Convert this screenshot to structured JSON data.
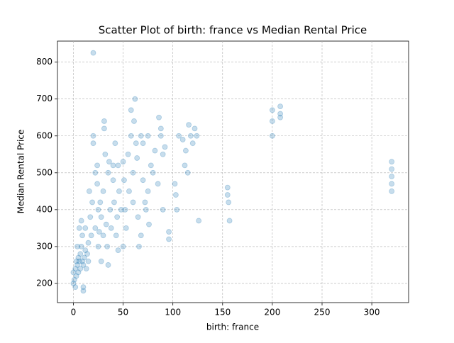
{
  "chart_data": {
    "type": "scatter",
    "title": "Scatter Plot of birth: france vs Median Rental Price",
    "x_label": "birth: france",
    "y_label": "Median Rental Price",
    "color": "#1f77b4",
    "grid": true,
    "xlim": [
      -16,
      337
    ],
    "ylim": [
      148,
      857
    ],
    "xticks": [
      0,
      50,
      100,
      150,
      200,
      250,
      300
    ],
    "yticks": [
      200,
      300,
      400,
      500,
      600,
      700,
      800
    ],
    "x": [
      0,
      0,
      1,
      2,
      2,
      3,
      3,
      4,
      4,
      5,
      5,
      6,
      6,
      7,
      7,
      8,
      8,
      9,
      9,
      10,
      10,
      10,
      11,
      12,
      12,
      13,
      14,
      15,
      15,
      16,
      17,
      18,
      19,
      20,
      20,
      20,
      22,
      22,
      24,
      24,
      25,
      25,
      26,
      27,
      28,
      28,
      30,
      30,
      31,
      31,
      32,
      33,
      34,
      35,
      35,
      36,
      37,
      38,
      40,
      40,
      41,
      42,
      43,
      44,
      45,
      45,
      46,
      48,
      50,
      50,
      51,
      52,
      53,
      55,
      56,
      58,
      58,
      60,
      60,
      61,
      62,
      63,
      64,
      65,
      66,
      68,
      68,
      70,
      70,
      72,
      73,
      75,
      75,
      76,
      78,
      80,
      82,
      85,
      86,
      88,
      88,
      90,
      90,
      92,
      96,
      96,
      102,
      103,
      104,
      106,
      110,
      112,
      113,
      115,
      116,
      118,
      120,
      122,
      124,
      126,
      155,
      155,
      156,
      157,
      200,
      200,
      200,
      208,
      208,
      208,
      320,
      320,
      320,
      320,
      320
    ],
    "values": [
      200,
      230,
      210,
      240,
      190,
      260,
      220,
      250,
      300,
      270,
      230,
      260,
      350,
      240,
      280,
      300,
      370,
      260,
      330,
      250,
      190,
      180,
      270,
      290,
      350,
      240,
      280,
      310,
      260,
      450,
      380,
      330,
      420,
      600,
      825,
      580,
      350,
      500,
      520,
      470,
      300,
      400,
      340,
      420,
      380,
      260,
      450,
      330,
      620,
      640,
      550,
      360,
      300,
      250,
      500,
      530,
      400,
      350,
      520,
      480,
      420,
      580,
      330,
      380,
      520,
      290,
      450,
      400,
      300,
      530,
      480,
      400,
      350,
      550,
      450,
      600,
      670,
      500,
      420,
      640,
      700,
      580,
      540,
      380,
      300,
      600,
      330,
      480,
      580,
      420,
      400,
      450,
      600,
      360,
      520,
      500,
      560,
      470,
      650,
      620,
      600,
      550,
      400,
      570,
      340,
      320,
      470,
      440,
      400,
      600,
      590,
      520,
      560,
      500,
      630,
      600,
      580,
      620,
      600,
      370,
      460,
      440,
      420,
      370,
      670,
      640,
      600,
      680,
      660,
      650,
      530,
      510,
      490,
      470,
      450
    ]
  }
}
